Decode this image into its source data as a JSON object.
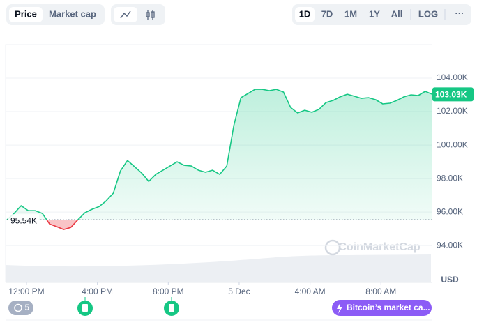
{
  "toolbar": {
    "views": [
      "Price",
      "Market cap"
    ],
    "ranges": [
      "1D",
      "7D",
      "1M",
      "1Y",
      "All",
      "LOG"
    ],
    "more": "···"
  },
  "watermark": "CoinMarketCap",
  "events": {
    "count": "5",
    "news": "Bitcoin’s market ca..."
  },
  "chart_data": {
    "type": "line",
    "y_unit": "USD",
    "x": [
      -1.1,
      -0.7,
      -0.3,
      0.1,
      0.5,
      0.9,
      1.3,
      1.7,
      2.1,
      2.5,
      2.9,
      3.3,
      3.7,
      4.1,
      4.5,
      4.9,
      5.3,
      5.7,
      6.1,
      6.5,
      6.9,
      7.3,
      7.7,
      8.1,
      8.5,
      8.9,
      9.3,
      9.7,
      10.1,
      10.5,
      10.9,
      11.3,
      11.7,
      12.1,
      12.5,
      12.9,
      13.3,
      13.7,
      14.1,
      14.5,
      14.9,
      15.3,
      15.7,
      16.1,
      16.5,
      16.9,
      17.3,
      17.7,
      18.1,
      18.5,
      18.9,
      19.3,
      19.7,
      20.1,
      20.5,
      20.9,
      21.3,
      21.7,
      22.1,
      22.5,
      22.9
    ],
    "series": [
      {
        "name": "Price",
        "color": "#16c784",
        "down_color": "#ea3943",
        "values": [
          95540,
          95920,
          96380,
          96080,
          96080,
          95920,
          95290,
          95130,
          94960,
          95080,
          95540,
          95960,
          96170,
          96330,
          96670,
          97130,
          98460,
          99080,
          98710,
          98330,
          97830,
          98250,
          98500,
          98750,
          99000,
          98790,
          98750,
          98500,
          98380,
          98500,
          98250,
          98750,
          101170,
          102830,
          103080,
          103330,
          103330,
          103250,
          103330,
          103170,
          102250,
          101920,
          102080,
          101960,
          102130,
          102540,
          102670,
          102880,
          103040,
          102920,
          102790,
          102830,
          102710,
          102460,
          102500,
          102670,
          102880,
          103000,
          102960,
          103210,
          103030
        ]
      }
    ],
    "baseline": {
      "value": 95540,
      "label": "95.54K"
    },
    "current": {
      "value": 103030,
      "label": "103.03K"
    },
    "xlim": [
      -1.1,
      22.9
    ],
    "xticks": [
      {
        "value": 0,
        "label": "12:00 PM"
      },
      {
        "value": 4,
        "label": "4:00 PM"
      },
      {
        "value": 8,
        "label": "8:00 PM"
      },
      {
        "value": 12,
        "label": "5 Dec"
      },
      {
        "value": 16,
        "label": "4:00 AM"
      },
      {
        "value": 20,
        "label": "8:00 AM"
      }
    ],
    "ylim": [
      91800,
      106000
    ],
    "yticks": [
      {
        "value": 94000,
        "label": "94.00K"
      },
      {
        "value": 96000,
        "label": "96.00K"
      },
      {
        "value": 98000,
        "label": "98.00K"
      },
      {
        "value": 100000,
        "label": "100.00K"
      },
      {
        "value": 102000,
        "label": "102.00K"
      },
      {
        "value": 104000,
        "label": "104.00K"
      }
    ],
    "grid": true
  }
}
